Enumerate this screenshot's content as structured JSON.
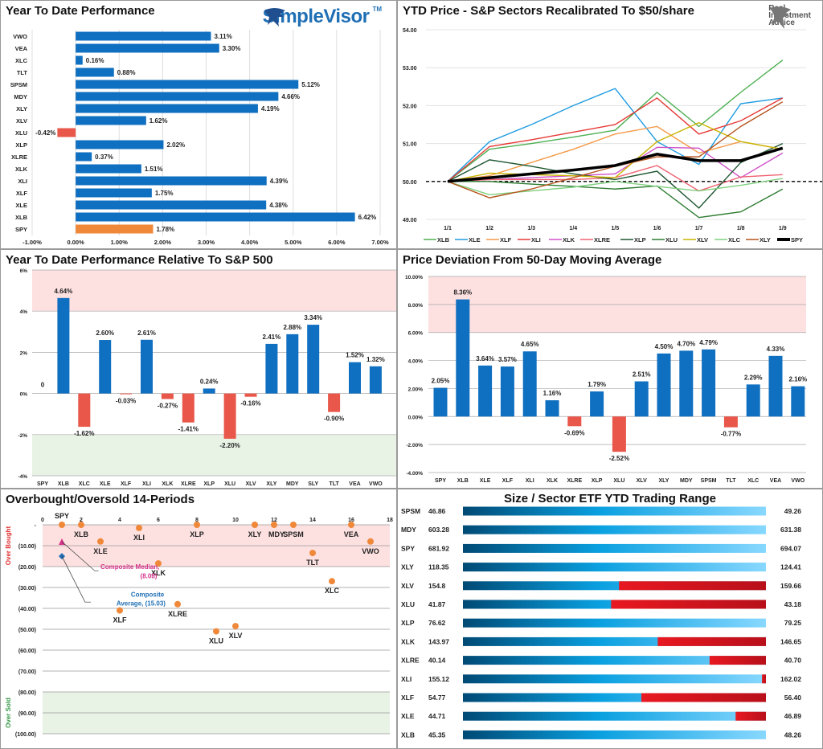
{
  "logos": {
    "simplevisor": "SimpleVisor",
    "simplevisor_tm": "TM",
    "ria_line1": "Real",
    "ria_line2": "Investment",
    "ria_line3": "Advice"
  },
  "colors": {
    "positive": "#0f6fc0",
    "negative": "#e8574a",
    "spy": "#f0883a",
    "overbought_band": "#fde0e0",
    "oversold_band": "#e8f3e6",
    "range_red": "#d8141c",
    "dot": "#f0883a",
    "median": "#d6338a",
    "average": "#1f6fb5"
  },
  "chart_data": [
    {
      "type": "bar",
      "orientation": "horizontal",
      "title": "Year To Date Performance",
      "categories": [
        "VWO",
        "VEA",
        "XLC",
        "TLT",
        "SPSM",
        "MDY",
        "XLY",
        "XLV",
        "XLU",
        "XLP",
        "XLRE",
        "XLK",
        "XLI",
        "XLF",
        "XLE",
        "XLB",
        "SPY"
      ],
      "values": [
        3.11,
        3.3,
        0.16,
        0.88,
        5.12,
        4.66,
        4.19,
        1.62,
        -0.42,
        2.02,
        0.37,
        1.51,
        4.39,
        1.75,
        4.38,
        6.42,
        1.78
      ],
      "labels": [
        "3.11%",
        "3.30%",
        "0.16%",
        "0.88%",
        "5.12%",
        "4.66%",
        "4.19%",
        "1.62%",
        "-0.42%",
        "2.02%",
        "0.37%",
        "1.51%",
        "4.39%",
        "1.75%",
        "4.38%",
        "6.42%",
        "1.78%"
      ],
      "xlim": [
        -1,
        7
      ],
      "xticks": [
        "-1.00%",
        "0.00%",
        "1.00%",
        "2.00%",
        "3.00%",
        "4.00%",
        "5.00%",
        "6.00%",
        "7.00%"
      ],
      "grid": true,
      "highlight": "SPY"
    },
    {
      "type": "line",
      "title": "YTD Price - S&P Sectors Recalibrated To $50/share",
      "x": [
        "1/1",
        "1/2",
        "1/3",
        "1/4",
        "1/5",
        "1/6",
        "1/7",
        "1/8",
        "1/9"
      ],
      "ylim": [
        49,
        54
      ],
      "yticks": [
        "49.00",
        "50.00",
        "51.00",
        "52.00",
        "53.00",
        "54.00"
      ],
      "reference_line": 50,
      "legend": "bottom",
      "series": [
        {
          "name": "XLB",
          "color": "#4caf50",
          "values": [
            50,
            50.85,
            51.0,
            51.17,
            51.35,
            52.35,
            51.45,
            52.35,
            53.2
          ]
        },
        {
          "name": "XLE",
          "color": "#1e9be0",
          "values": [
            50,
            51.05,
            51.5,
            52.0,
            52.45,
            51.05,
            50.45,
            52.05,
            52.2
          ]
        },
        {
          "name": "XLF",
          "color": "#f59a48",
          "values": [
            50,
            50.15,
            50.5,
            50.85,
            51.25,
            51.45,
            50.75,
            51.05,
            50.85
          ]
        },
        {
          "name": "XLI",
          "color": "#e53935",
          "values": [
            50,
            50.92,
            51.1,
            51.3,
            51.5,
            52.2,
            51.25,
            51.6,
            52.2
          ]
        },
        {
          "name": "XLK",
          "color": "#d050c8",
          "values": [
            50,
            50.05,
            50.1,
            50.15,
            50.2,
            50.9,
            50.88,
            50.1,
            50.75
          ]
        },
        {
          "name": "XLRE",
          "color": "#f06070",
          "values": [
            50,
            50.05,
            50.05,
            50.05,
            50.1,
            50.42,
            49.75,
            50.12,
            50.18
          ]
        },
        {
          "name": "XLP",
          "color": "#1e5631",
          "values": [
            50,
            50.57,
            50.4,
            50.2,
            50.05,
            50.27,
            49.3,
            50.5,
            51.0
          ]
        },
        {
          "name": "XLU",
          "color": "#2e7d32",
          "values": [
            50,
            50.0,
            49.93,
            49.87,
            49.8,
            49.88,
            49.05,
            49.2,
            49.8
          ]
        },
        {
          "name": "XLV",
          "color": "#c8b400",
          "values": [
            50,
            50.22,
            50.18,
            50.15,
            50.1,
            51.05,
            51.55,
            51.05,
            50.85
          ]
        },
        {
          "name": "XLC",
          "color": "#7fd07f",
          "values": [
            50,
            49.65,
            49.75,
            49.85,
            50.0,
            49.87,
            49.75,
            49.9,
            50.08
          ]
        },
        {
          "name": "XLY",
          "color": "#b5541c",
          "values": [
            50,
            49.57,
            49.8,
            50.1,
            50.4,
            50.65,
            50.65,
            51.45,
            52.1
          ]
        },
        {
          "name": "SPY",
          "color": "#000000",
          "values": [
            50,
            50.1,
            50.2,
            50.3,
            50.42,
            50.72,
            50.55,
            50.55,
            50.88
          ]
        }
      ]
    },
    {
      "type": "bar",
      "title": "Year To Date Performance Relative To S&P 500",
      "categories": [
        "SPY",
        "XLB",
        "XLC",
        "XLE",
        "XLF",
        "XLI",
        "XLK",
        "XLRE",
        "XLP",
        "XLU",
        "XLV",
        "XLY",
        "MDY",
        "SLY",
        "TLT",
        "VEA",
        "VWO"
      ],
      "values": [
        0,
        4.64,
        -1.62,
        2.6,
        -0.03,
        2.61,
        -0.27,
        -1.41,
        0.24,
        -2.2,
        -0.16,
        2.41,
        2.88,
        3.34,
        -0.9,
        1.52,
        1.32
      ],
      "labels": [
        "0",
        "4.64%",
        "-1.62%",
        "2.60%",
        "-0.03%",
        "2.61%",
        "-0.27%",
        "-1.41%",
        "0.24%",
        "-2.20%",
        "-0.16%",
        "2.41%",
        "2.88%",
        "3.34%",
        "-0.90%",
        "1.52%",
        "1.32%"
      ],
      "ylim": [
        -4,
        6
      ],
      "yticks": [
        "-4%",
        "-2%",
        "0%",
        "2%",
        "4%",
        "6%"
      ],
      "bands": [
        [
          4,
          6,
          "overbought"
        ],
        [
          -4,
          -2,
          "oversold"
        ]
      ],
      "grid": true
    },
    {
      "type": "bar",
      "title": "Price Deviation From 50-Day Moving Average",
      "categories": [
        "SPY",
        "XLB",
        "XLE",
        "XLF",
        "XLI",
        "XLK",
        "XLRE",
        "XLP",
        "XLU",
        "XLV",
        "XLY",
        "MDY",
        "SPSM",
        "TLT",
        "XLC",
        "VEA",
        "VWO"
      ],
      "values": [
        2.05,
        8.36,
        3.64,
        3.57,
        4.65,
        1.16,
        -0.69,
        1.79,
        -2.52,
        2.51,
        4.5,
        4.7,
        4.79,
        -0.77,
        2.29,
        4.33,
        2.16
      ],
      "labels": [
        "2.05%",
        "8.36%",
        "3.64%",
        "3.57%",
        "4.65%",
        "1.16%",
        "-0.69%",
        "1.79%",
        "-2.52%",
        "2.51%",
        "4.50%",
        "4.70%",
        "4.79%",
        "-0.77%",
        "2.29%",
        "4.33%",
        "2.16%"
      ],
      "ylim": [
        -4,
        10
      ],
      "yticks": [
        "-4.00%",
        "-2.00%",
        "0.00%",
        "2.00%",
        "4.00%",
        "6.00%",
        "8.00%",
        "10.00%"
      ],
      "bands": [
        [
          6,
          10,
          "overbought"
        ]
      ],
      "grid": true
    },
    {
      "type": "scatter",
      "title": "Overbought/Oversold 14-Periods",
      "xlim": [
        0,
        18
      ],
      "xticks": [
        "0",
        "2",
        "4",
        "6",
        "8",
        "10",
        "12",
        "14",
        "16",
        "18"
      ],
      "ylim": [
        -100,
        0
      ],
      "yticks": [
        "-",
        "(10.00)",
        "(20.00)",
        "(30.00)",
        "(40.00)",
        "(50.00)",
        "(60.00)",
        "(70.00)",
        "(80.00)",
        "(90.00)",
        "(100.00)"
      ],
      "ylabel_top": "Over Bought",
      "ylabel_bottom": "Over Sold",
      "bands": [
        [
          -20,
          0,
          "overbought"
        ],
        [
          -100,
          -80,
          "oversold"
        ]
      ],
      "points": [
        {
          "label": "SPY",
          "x": 1,
          "y": 0
        },
        {
          "label": "XLB",
          "x": 2,
          "y": 0
        },
        {
          "label": "XLE",
          "x": 3,
          "y": -8
        },
        {
          "label": "XLF",
          "x": 4,
          "y": -41
        },
        {
          "label": "XLI",
          "x": 5,
          "y": -1.5
        },
        {
          "label": "XLK",
          "x": 6,
          "y": -18.5
        },
        {
          "label": "XLRE",
          "x": 7,
          "y": -38
        },
        {
          "label": "XLP",
          "x": 8,
          "y": 0
        },
        {
          "label": "XLU",
          "x": 9,
          "y": -51
        },
        {
          "label": "XLV",
          "x": 10,
          "y": -48.5
        },
        {
          "label": "XLY",
          "x": 11,
          "y": 0
        },
        {
          "label": "MDY",
          "x": 12,
          "y": 0
        },
        {
          "label": "SPSM",
          "x": 13,
          "y": 0
        },
        {
          "label": "TLT",
          "x": 14,
          "y": -13.5
        },
        {
          "label": "XLC",
          "x": 15,
          "y": -27
        },
        {
          "label": "VEA",
          "x": 16,
          "y": 0
        },
        {
          "label": "VWO",
          "x": 17,
          "y": -8
        }
      ],
      "annotations": [
        {
          "label": "Composite Median,",
          "value_label": "(8.08)",
          "x": 1,
          "y": -8.08,
          "marker": "triangle"
        },
        {
          "label": "Composite",
          "value_label": "Average,  (15.03)",
          "x": 1,
          "y": -15.03,
          "marker": "diamond"
        }
      ]
    },
    {
      "type": "range",
      "title": "Size / Sector ETF YTD Trading Range",
      "rows": [
        {
          "label": "SPSM",
          "low": "46.86",
          "high": "49.26",
          "position": 1.0
        },
        {
          "label": "MDY",
          "low": "603.28",
          "high": "631.38",
          "position": 1.0
        },
        {
          "label": "SPY",
          "low": "681.92",
          "high": "694.07",
          "position": 1.0
        },
        {
          "label": "XLY",
          "low": "118.35",
          "high": "124.41",
          "position": 1.0
        },
        {
          "label": "XLV",
          "low": "154.8",
          "high": "159.66",
          "position": 0.515
        },
        {
          "label": "XLU",
          "low": "41.87",
          "high": "43.18",
          "position": 0.489
        },
        {
          "label": "XLP",
          "low": "76.62",
          "high": "79.25",
          "position": 1.0
        },
        {
          "label": "XLK",
          "low": "143.97",
          "high": "146.65",
          "position": 0.643
        },
        {
          "label": "XLRE",
          "low": "40.14",
          "high": "40.70",
          "position": 0.814
        },
        {
          "label": "XLI",
          "low": "155.12",
          "high": "162.02",
          "position": 0.987
        },
        {
          "label": "XLF",
          "low": "54.77",
          "high": "56.40",
          "position": 0.589
        },
        {
          "label": "XLE",
          "low": "44.71",
          "high": "46.89",
          "position": 0.9
        },
        {
          "label": "XLB",
          "low": "45.35",
          "high": "48.26",
          "position": 1.0
        }
      ]
    }
  ]
}
